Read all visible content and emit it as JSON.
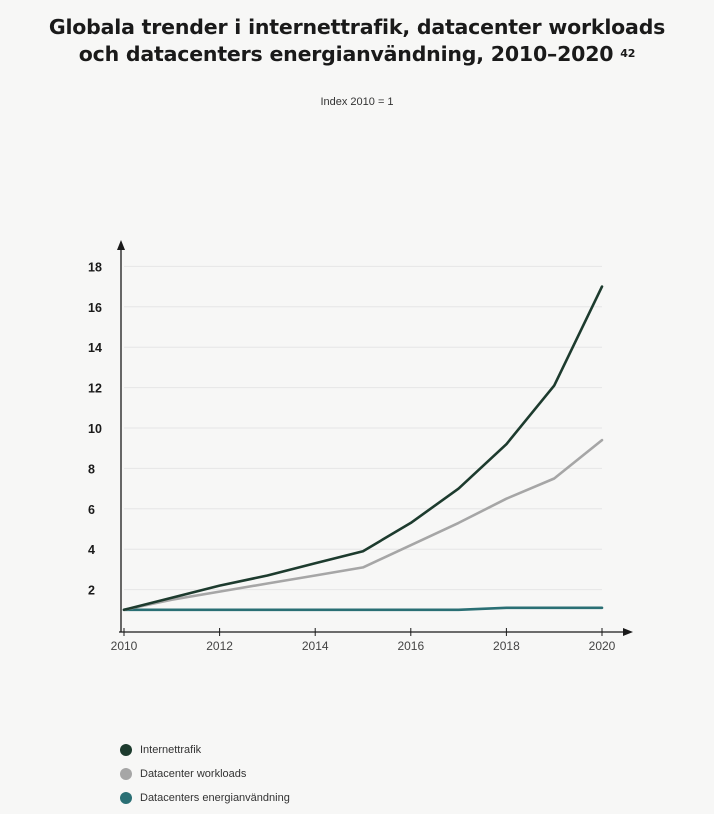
{
  "title": {
    "line1": "Globala trender i internettrafik, datacenter workloads",
    "line2": "och datacenters energianvändning, 2010–2020",
    "footnote": "42"
  },
  "subtitle": "Index 2010 = 1",
  "legend": [
    {
      "label": "Internettrafik",
      "color": "#1d3b2e"
    },
    {
      "label": "Datacenter workloads",
      "color": "#a6a6a6"
    },
    {
      "label": "Datacenters energianvändning",
      "color": "#2a6f74"
    }
  ],
  "chart_data": {
    "type": "line",
    "x": [
      2010,
      2011,
      2012,
      2013,
      2014,
      2015,
      2016,
      2017,
      2018,
      2019,
      2020
    ],
    "xticks": [
      "2010",
      "2012",
      "2014",
      "2016",
      "2018",
      "2020"
    ],
    "yticks": [
      "2",
      "4",
      "6",
      "8",
      "10",
      "12",
      "14",
      "16",
      "18"
    ],
    "ylim": [
      0,
      18.5
    ],
    "xlim": [
      2010,
      2020
    ],
    "grid": true,
    "legend_position": "bottom-left",
    "series": [
      {
        "name": "Internettrafik",
        "color": "#1d3b2e",
        "values": [
          1.0,
          1.6,
          2.2,
          2.7,
          3.3,
          3.9,
          5.3,
          7.0,
          9.2,
          12.1,
          17.0
        ]
      },
      {
        "name": "Datacenter workloads",
        "color": "#a6a6a6",
        "values": [
          1.0,
          1.5,
          1.9,
          2.3,
          2.7,
          3.1,
          4.2,
          5.3,
          6.5,
          7.5,
          9.4
        ]
      },
      {
        "name": "Datacenters energianvändning",
        "color": "#2a6f74",
        "values": [
          1.0,
          1.0,
          1.0,
          1.0,
          1.0,
          1.0,
          1.0,
          1.0,
          1.1,
          1.1,
          1.1
        ]
      }
    ]
  }
}
